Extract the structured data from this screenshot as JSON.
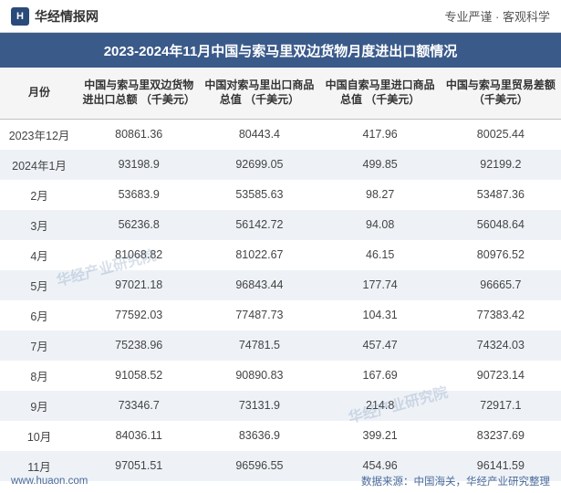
{
  "header": {
    "logo_text": "H",
    "site_name": "华经情报网",
    "tagline": "专业严谨 · 客观科学"
  },
  "title": "2023-2024年11月中国与索马里双边货物月度进出口额情况",
  "table": {
    "columns": [
      "月份",
      "中国与索马里双边货物进出口总额\n（千美元）",
      "中国对索马里出口商品总值\n（千美元）",
      "中国自索马里进口商品总值\n（千美元）",
      "中国与索马里贸易差额\n（千美元）"
    ],
    "rows": [
      [
        "2023年12月",
        "80861.36",
        "80443.4",
        "417.96",
        "80025.44"
      ],
      [
        "2024年1月",
        "93198.9",
        "92699.05",
        "499.85",
        "92199.2"
      ],
      [
        "2月",
        "53683.9",
        "53585.63",
        "98.27",
        "53487.36"
      ],
      [
        "3月",
        "56236.8",
        "56142.72",
        "94.08",
        "56048.64"
      ],
      [
        "4月",
        "81068.82",
        "81022.67",
        "46.15",
        "80976.52"
      ],
      [
        "5月",
        "97021.18",
        "96843.44",
        "177.74",
        "96665.7"
      ],
      [
        "6月",
        "77592.03",
        "77487.73",
        "104.31",
        "77383.42"
      ],
      [
        "7月",
        "75238.96",
        "74781.5",
        "457.47",
        "74324.03"
      ],
      [
        "8月",
        "91058.52",
        "90890.83",
        "167.69",
        "90723.14"
      ],
      [
        "9月",
        "73346.7",
        "73131.9",
        "214.8",
        "72917.1"
      ],
      [
        "10月",
        "84036.11",
        "83636.9",
        "399.21",
        "83237.69"
      ],
      [
        "11月",
        "97051.51",
        "96596.55",
        "454.96",
        "96141.59"
      ]
    ],
    "header_bg": "#f5f5f5",
    "row_even_bg": "#eef2f7",
    "row_odd_bg": "#ffffff",
    "border_color": "#c0c0c0",
    "text_color": "#444"
  },
  "footer": {
    "left": "www.huaon.com",
    "right": "数据来源：中国海关，华经产业研究整理"
  },
  "watermark": "华经产业研究院",
  "colors": {
    "title_bg": "#3a5a8a",
    "title_text": "#ffffff",
    "footer_text": "#4a6a9a",
    "logo_bg": "#2a4a7a"
  }
}
